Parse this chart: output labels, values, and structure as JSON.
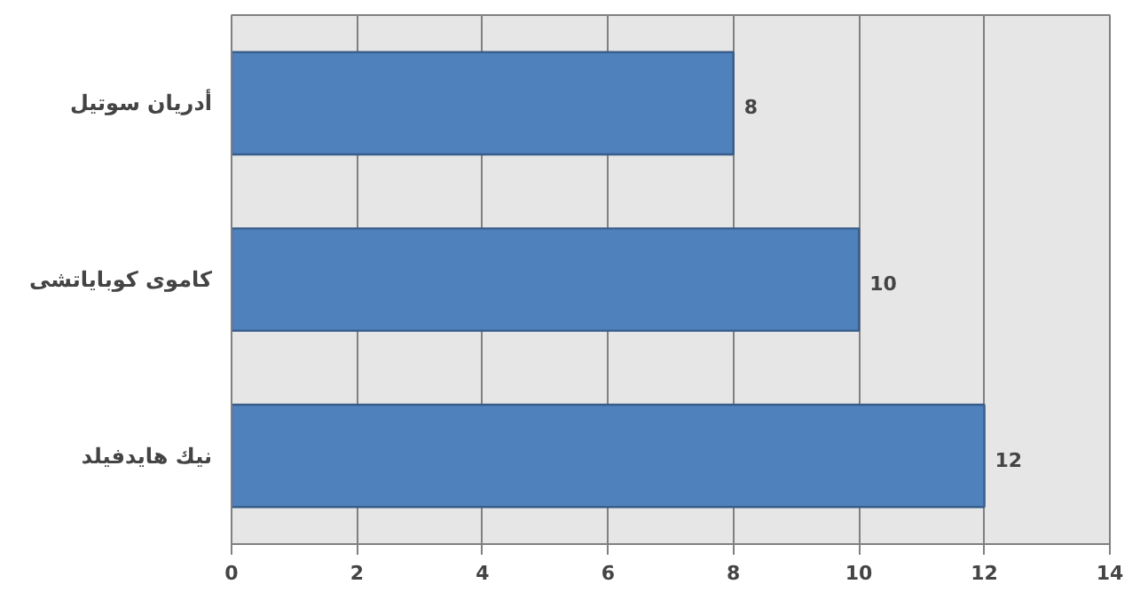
{
  "chart_data": {
    "type": "bar",
    "orientation": "horizontal",
    "categories": [
      "أدريان سوتيل",
      "كاموى كوباياتشى",
      "نيك هايدفيلد"
    ],
    "values": [
      8,
      10,
      12
    ],
    "color": "#4f81bd",
    "xlim": [
      0,
      14
    ],
    "xticks": [
      0,
      2,
      4,
      6,
      8,
      10,
      12,
      14
    ],
    "grid": "x",
    "data_labels": true
  }
}
